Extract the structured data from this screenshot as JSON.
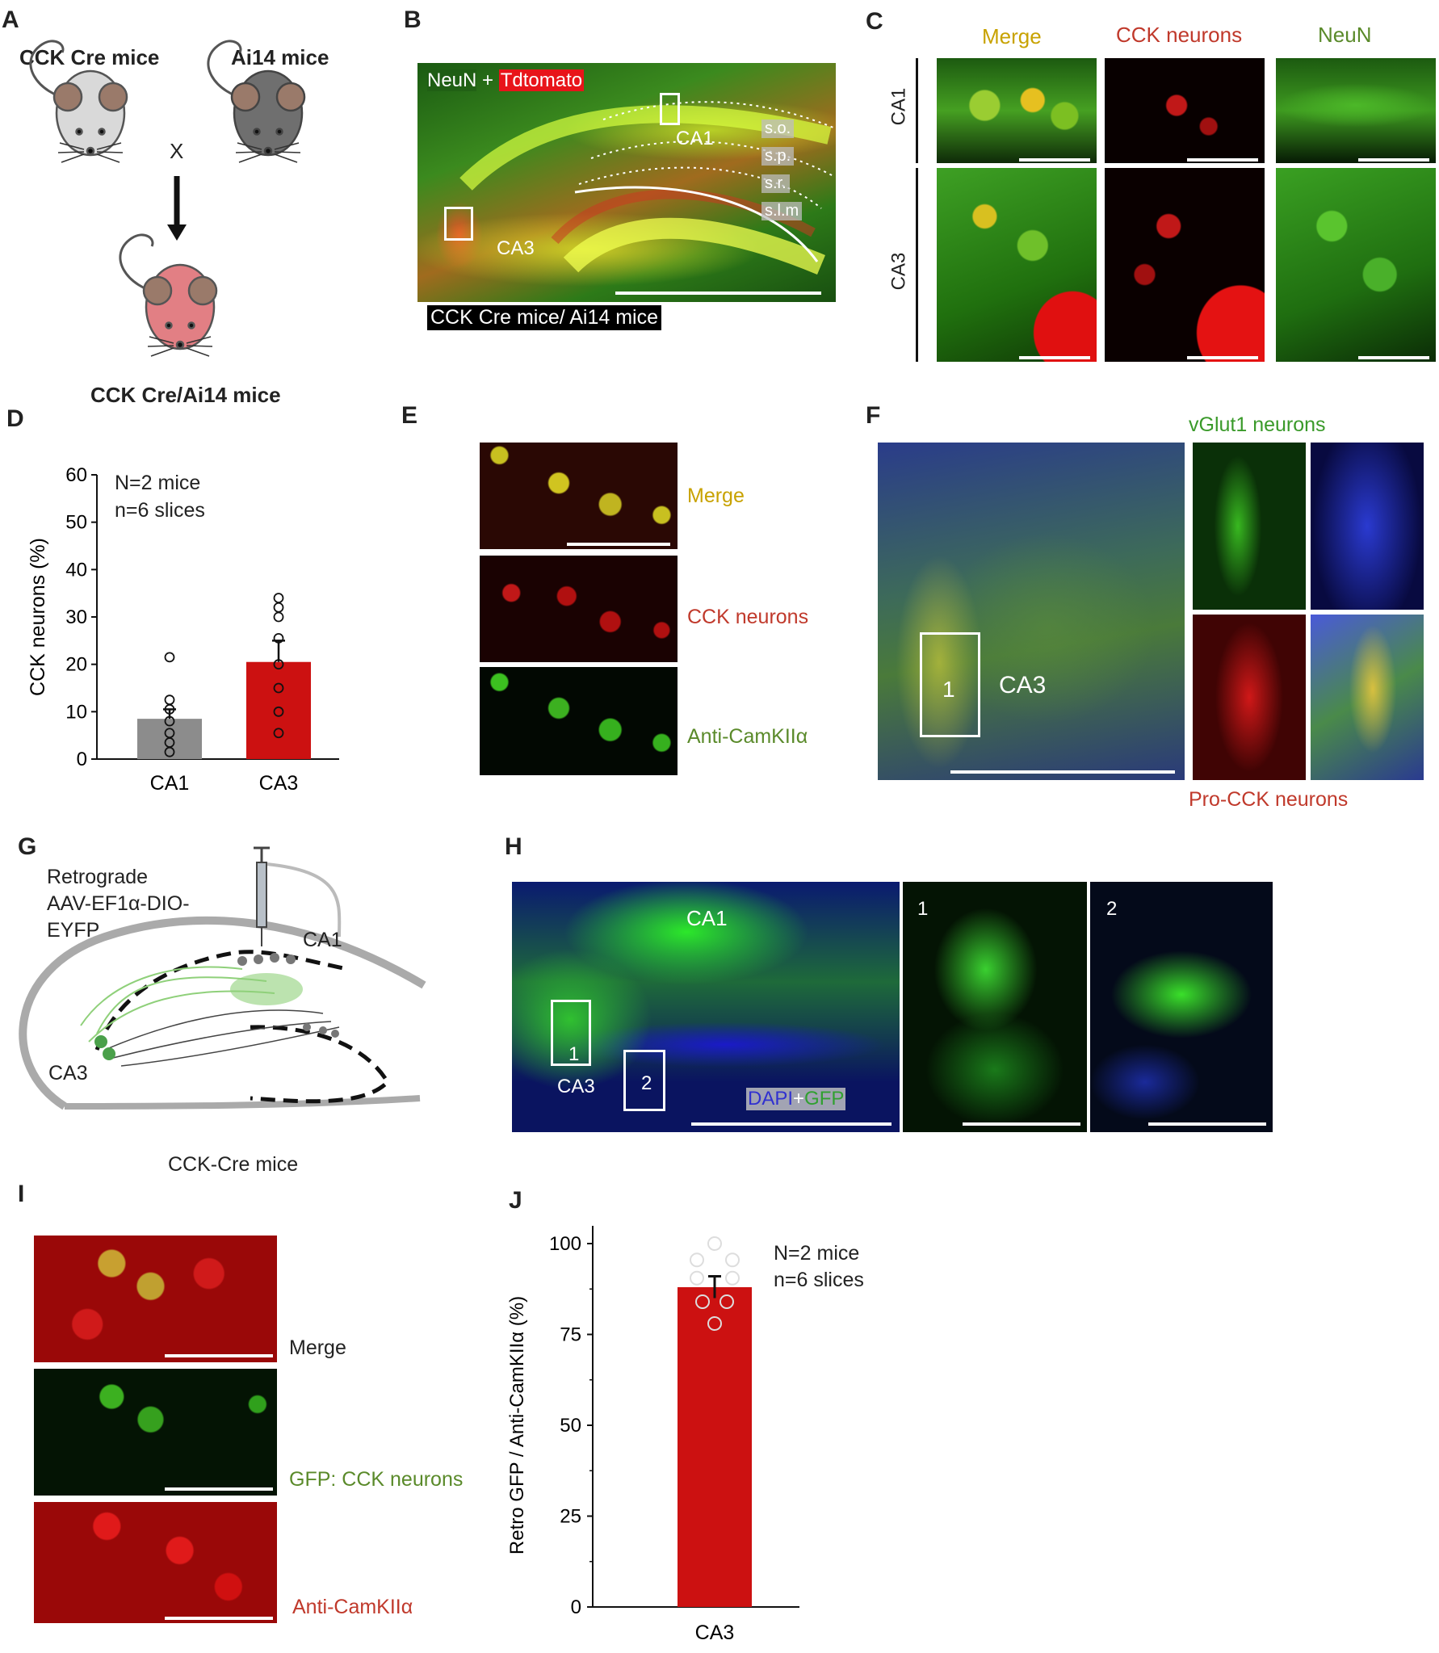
{
  "panel_labels": {
    "A": "A",
    "B": "B",
    "C": "C",
    "D": "D",
    "E": "E",
    "F": "F",
    "G": "G",
    "H": "H",
    "I": "I",
    "J": "J"
  },
  "panelA": {
    "mouse1": "CCK Cre mice",
    "mouse2": "Ai14 mice",
    "cross": "X",
    "result": "CCK Cre/Ai14 mice",
    "colors": {
      "mouse1": "#d9d9d9",
      "mouse2": "#6f6f6f",
      "result": "#e27f84"
    }
  },
  "panelB": {
    "stain_neun": "NeuN",
    "stain_plus": " + ",
    "stain_td": "Tdtomato",
    "ca1": "CA1",
    "ca3": "CA3",
    "layers": [
      "s.o.",
      "s.p.",
      "s.r.",
      "s.l.m"
    ],
    "caption": "CCK Cre mice/ Ai14 mice"
  },
  "panelC": {
    "columns": [
      "Merge",
      "CCK neurons",
      "NeuN"
    ],
    "rows": [
      "CA1",
      "CA3"
    ],
    "colors": {
      "merge": "#c8a200",
      "cck": "#c0392b",
      "neun": "#5a8a2a"
    }
  },
  "panelD": {
    "annotation": [
      "N=2 mice",
      "n=6 slices"
    ],
    "chart_data": {
      "type": "bar",
      "categories": [
        "CA1",
        "CA3"
      ],
      "values": [
        8.5,
        20.5
      ],
      "errors": [
        2.0,
        4.5
      ],
      "points": [
        [
          1.5,
          3.5,
          5.5,
          8,
          10.5,
          12.5,
          21.5
        ],
        [
          5.5,
          10,
          15,
          20,
          25.5,
          30,
          32,
          34
        ]
      ],
      "ylabel": "CCK neurons (%)",
      "ylim": [
        0,
        60
      ],
      "yticks": [
        0,
        10,
        20,
        30,
        40,
        50,
        60
      ],
      "colors": [
        "#8c8c8c",
        "#cc1111"
      ]
    }
  },
  "panelE": {
    "labels": [
      "Merge",
      "CCK neurons",
      "Anti-CamKIIα"
    ],
    "colors": [
      "#c8a200",
      "#c0392b",
      "#5a8a2a"
    ]
  },
  "panelF": {
    "title": "vGlut1 neurons",
    "ca3": "CA3",
    "box": "1",
    "bottom": "Pro-CCK neurons"
  },
  "panelG": {
    "virus": [
      "Retrograde",
      "AAV-EF1α-DIO-",
      "EYFP"
    ],
    "ca1": "CA1",
    "ca3": "CA3",
    "caption": "CCK-Cre mice"
  },
  "panelH": {
    "ca1": "CA1",
    "ca3": "CA3",
    "box1": "1",
    "box2": "2",
    "stain_dapi": "DAPI",
    "stain_plus": "+",
    "stain_gfp": "GFP",
    "inset1": "1",
    "inset2": "2"
  },
  "panelI": {
    "labels": [
      "Merge",
      "GFP: CCK neurons",
      "Anti-CamKIIα"
    ]
  },
  "panelJ": {
    "annotation": [
      "N=2 mice",
      "n=6 slices"
    ],
    "chart_data": {
      "type": "bar",
      "categories": [
        "CA3"
      ],
      "values": [
        88
      ],
      "errors": [
        3
      ],
      "points": [
        100,
        95.5,
        95.5,
        90.5,
        90.5,
        84,
        84,
        78
      ],
      "ylabel": "Retro GFP / Anti-CamKIIα (%)",
      "ylim": [
        0,
        100
      ],
      "yticks": [
        0,
        25,
        50,
        75,
        100
      ],
      "colors": [
        "#cc1111"
      ]
    }
  }
}
